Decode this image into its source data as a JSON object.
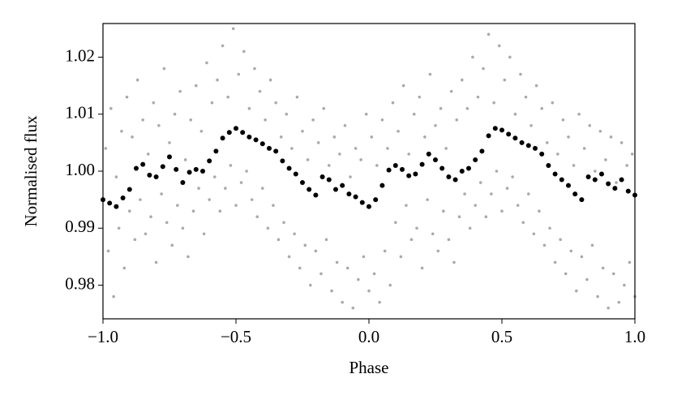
{
  "chart_data": {
    "type": "scatter",
    "xlabel": "Phase",
    "ylabel": "Normalised flux",
    "xlim": [
      -1,
      1
    ],
    "ylim": [
      0.9741,
      1.0259
    ],
    "xticks": [
      {
        "value": -1,
        "label": "−1.0"
      },
      {
        "value": -0.5,
        "label": "−0.5"
      },
      {
        "value": 0,
        "label": "0.0"
      },
      0.5,
      {
        "value": 1,
        "label": "1.0"
      }
    ],
    "yticks": [
      0.98,
      0.99,
      {
        "value": 1,
        "label": "1.00"
      },
      1.01,
      1.02
    ],
    "grid": false,
    "series": [
      {
        "color": "#aaaaaa",
        "x": [
          -0.99,
          -0.97,
          -0.95,
          -0.93,
          -0.91,
          -0.89,
          -0.87,
          -0.85,
          -0.83,
          -0.81,
          -0.79,
          -0.77,
          -0.75,
          -0.73,
          -0.71,
          -0.69,
          -0.67,
          -0.65,
          -0.63,
          -0.61,
          -0.59,
          -0.57,
          -0.55,
          -0.53,
          -0.51,
          -0.49,
          -0.47,
          -0.45,
          -0.43,
          -0.41,
          -0.39,
          -0.37,
          -0.35,
          -0.33,
          -0.31,
          -0.29,
          -0.27,
          -0.25,
          -0.23,
          -0.21,
          -0.19,
          -0.17,
          -0.15,
          -0.13,
          -0.11,
          -0.09,
          -0.07,
          -0.05,
          -0.03,
          -0.01,
          0.01,
          0.03,
          0.05,
          0.07,
          0.09,
          0.11,
          0.13,
          0.15,
          0.17,
          0.19,
          0.21,
          0.23,
          0.25,
          0.27,
          0.29,
          0.31,
          0.33,
          0.35,
          0.37,
          0.39,
          0.41,
          0.43,
          0.45,
          0.47,
          0.49,
          0.51,
          0.53,
          0.55,
          0.57,
          0.59,
          0.61,
          0.63,
          0.65,
          0.67,
          0.69,
          0.71,
          0.73,
          0.75,
          0.77,
          0.79,
          0.81,
          0.83,
          0.85,
          0.87,
          0.89,
          0.91,
          0.93,
          0.95,
          0.97,
          0.99
        ],
        "y": [
          1.004,
          1.011,
          0.999,
          1.007,
          1.013,
          1.006,
          1.016,
          1.009,
          1.003,
          1.012,
          1.008,
          1.018,
          1.005,
          1.01,
          1.014,
          1.002,
          1.009,
          1.015,
          1.007,
          1.019,
          1.012,
          1.016,
          1.022,
          1.013,
          1.025,
          1.017,
          1.021,
          1.011,
          1.018,
          1.014,
          1.009,
          1.016,
          1.012,
          1.006,
          1.01,
          1.004,
          1.013,
          1.007,
          1.002,
          1.009,
          1.005,
          1.011,
          1.001,
          1.006,
          1.003,
          1.008,
          0.999,
          1.004,
          1.002,
          1.01,
          1.006,
          1.001,
          1.009,
          1.004,
          1.012,
          1.007,
          1.015,
          1.003,
          1.01,
          1.013,
          1.006,
          1.017,
          1.008,
          1.011,
          1.004,
          1.014,
          1.009,
          1.016,
          1.011,
          1.02,
          1.013,
          1.018,
          1.024,
          1.012,
          1.022,
          1.016,
          1.02,
          1.01,
          1.017,
          1.013,
          1.008,
          1.015,
          1.011,
          1.005,
          1.012,
          1.003,
          1.009,
          1.006,
          1.001,
          1.01,
          1.004,
          1.008,
          1.0,
          1.007,
          1.002,
          1.006,
          0.998,
          1.005,
          1.001,
          1.003
        ]
      },
      {
        "color": "#aaaaaa",
        "x": [
          -0.98,
          -0.96,
          -0.94,
          -0.92,
          -0.9,
          -0.88,
          -0.86,
          -0.84,
          -0.82,
          -0.8,
          -0.78,
          -0.76,
          -0.74,
          -0.72,
          -0.7,
          -0.68,
          -0.66,
          -0.64,
          -0.62,
          -0.6,
          -0.58,
          -0.56,
          -0.54,
          -0.52,
          -0.5,
          -0.48,
          -0.46,
          -0.44,
          -0.42,
          -0.4,
          -0.38,
          -0.36,
          -0.34,
          -0.32,
          -0.3,
          -0.28,
          -0.26,
          -0.24,
          -0.22,
          -0.2,
          -0.18,
          -0.16,
          -0.14,
          -0.12,
          -0.1,
          -0.08,
          -0.06,
          -0.04,
          -0.02,
          0.0,
          0.02,
          0.04,
          0.06,
          0.08,
          0.1,
          0.12,
          0.14,
          0.16,
          0.18,
          0.2,
          0.22,
          0.24,
          0.26,
          0.28,
          0.3,
          0.32,
          0.34,
          0.36,
          0.38,
          0.4,
          0.42,
          0.44,
          0.46,
          0.48,
          0.5,
          0.52,
          0.54,
          0.56,
          0.58,
          0.6,
          0.62,
          0.64,
          0.66,
          0.68,
          0.7,
          0.72,
          0.74,
          0.76,
          0.78,
          0.8,
          0.82,
          0.84,
          0.86,
          0.88,
          0.9,
          0.92,
          0.94,
          0.96,
          0.98,
          1.0
        ],
        "y": [
          0.986,
          0.978,
          0.99,
          0.983,
          0.993,
          0.988,
          0.995,
          0.989,
          0.992,
          0.984,
          0.996,
          0.991,
          0.987,
          0.994,
          0.99,
          0.985,
          0.993,
          0.997,
          0.989,
          0.995,
          0.999,
          0.993,
          0.997,
          1.001,
          0.994,
          0.998,
          1.0,
          0.995,
          0.992,
          0.997,
          0.99,
          0.994,
          0.988,
          0.991,
          0.985,
          0.989,
          0.983,
          0.987,
          0.98,
          0.986,
          0.982,
          0.988,
          0.979,
          0.984,
          0.977,
          0.983,
          0.976,
          0.981,
          0.985,
          0.979,
          0.982,
          0.977,
          0.986,
          0.98,
          0.991,
          0.985,
          0.994,
          0.988,
          0.99,
          0.983,
          0.995,
          0.989,
          0.986,
          0.993,
          0.988,
          0.984,
          0.992,
          0.996,
          0.99,
          0.994,
          0.998,
          0.992,
          0.996,
          1.0,
          0.993,
          0.997,
          0.999,
          0.994,
          0.991,
          0.996,
          0.989,
          0.993,
          0.987,
          0.99,
          0.984,
          0.988,
          0.982,
          0.986,
          0.979,
          0.985,
          0.981,
          0.987,
          0.978,
          0.983,
          0.976,
          0.982,
          0.977,
          0.98,
          0.984,
          0.978
        ]
      },
      {
        "color": "#000000",
        "x": [
          -1,
          -0.975,
          -0.95,
          -0.925,
          -0.9,
          -0.875,
          -0.85,
          -0.825,
          -0.8,
          -0.775,
          -0.75,
          -0.725,
          -0.7,
          -0.675,
          -0.65,
          -0.625,
          -0.6,
          -0.575,
          -0.55,
          -0.525,
          -0.5,
          -0.475,
          -0.45,
          -0.425,
          -0.4,
          -0.375,
          -0.35,
          -0.325,
          -0.3,
          -0.275,
          -0.25,
          -0.225,
          -0.2,
          -0.175,
          -0.15,
          -0.125,
          -0.1,
          -0.075,
          -0.05,
          -0.025,
          0,
          0.025,
          0.05,
          0.075,
          0.1,
          0.125,
          0.15,
          0.175,
          0.2,
          0.225,
          0.25,
          0.275,
          0.3,
          0.325,
          0.35,
          0.375,
          0.4,
          0.425,
          0.45,
          0.475,
          0.5,
          0.525,
          0.55,
          0.575,
          0.6,
          0.625,
          0.65,
          0.675,
          0.7,
          0.725,
          0.75,
          0.775,
          0.8,
          0.825,
          0.85,
          0.875,
          0.9,
          0.925,
          0.95,
          0.975,
          1
        ],
        "y": [
          0.995,
          0.9944,
          0.9938,
          0.9953,
          0.9968,
          1.0005,
          1.0012,
          0.9993,
          0.999,
          1.0008,
          1.0025,
          1.0003,
          0.998,
          0.9998,
          1.0003,
          1.0,
          1.0018,
          1.0035,
          1.0058,
          1.0068,
          1.0075,
          1.0068,
          1.006,
          1.0055,
          1.0048,
          1.004,
          1.0035,
          1.0018,
          1.0005,
          0.9995,
          0.998,
          0.9968,
          0.9958,
          0.999,
          0.9985,
          0.9968,
          0.9975,
          0.996,
          0.9955,
          0.9945,
          0.9938,
          0.995,
          0.9975,
          1.0002,
          1.001,
          1.0003,
          0.9992,
          0.9995,
          1.0012,
          1.003,
          1.002,
          1.0005,
          0.999,
          0.9985,
          1.0,
          1.0005,
          1.002,
          1.0035,
          1.0062,
          1.0075,
          1.0072,
          1.0065,
          1.0058,
          1.005,
          1.0045,
          1.004,
          1.003,
          1.001,
          0.9995,
          0.9985,
          0.9975,
          0.996,
          0.995,
          0.999,
          0.9985,
          0.9995,
          0.9978,
          0.997,
          0.9985,
          0.9965,
          0.9958
        ]
      }
    ]
  }
}
